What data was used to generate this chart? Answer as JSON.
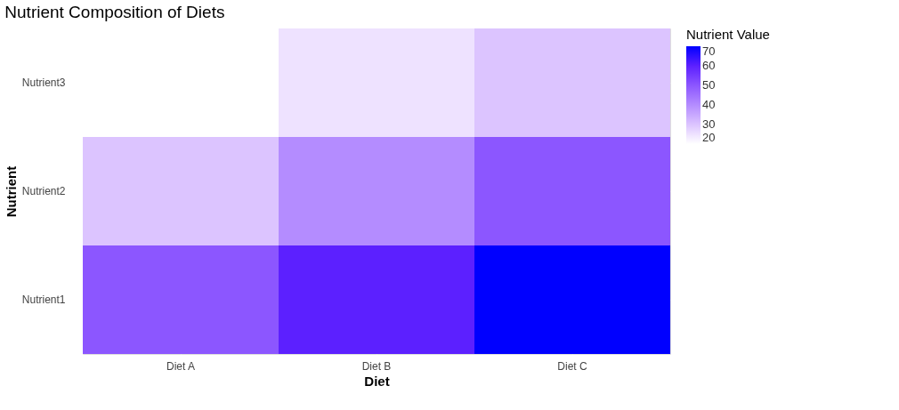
{
  "chart_data": {
    "type": "heatmap",
    "title": "Nutrient Composition of Diets",
    "xlabel": "Diet",
    "ylabel": "Nutrient",
    "legend_title": "Nutrient Value",
    "categories": [
      "Diet A",
      "Diet B",
      "Diet C"
    ],
    "y_categories": [
      "Nutrient3",
      "Nutrient2",
      "Nutrient1"
    ],
    "cells": [
      [
        20,
        25,
        30
      ],
      [
        30,
        40,
        50
      ],
      [
        50,
        60,
        70
      ]
    ],
    "clim": [
      20,
      70
    ],
    "cticks": [
      20,
      30,
      40,
      50,
      60,
      70
    ],
    "grid": true
  }
}
